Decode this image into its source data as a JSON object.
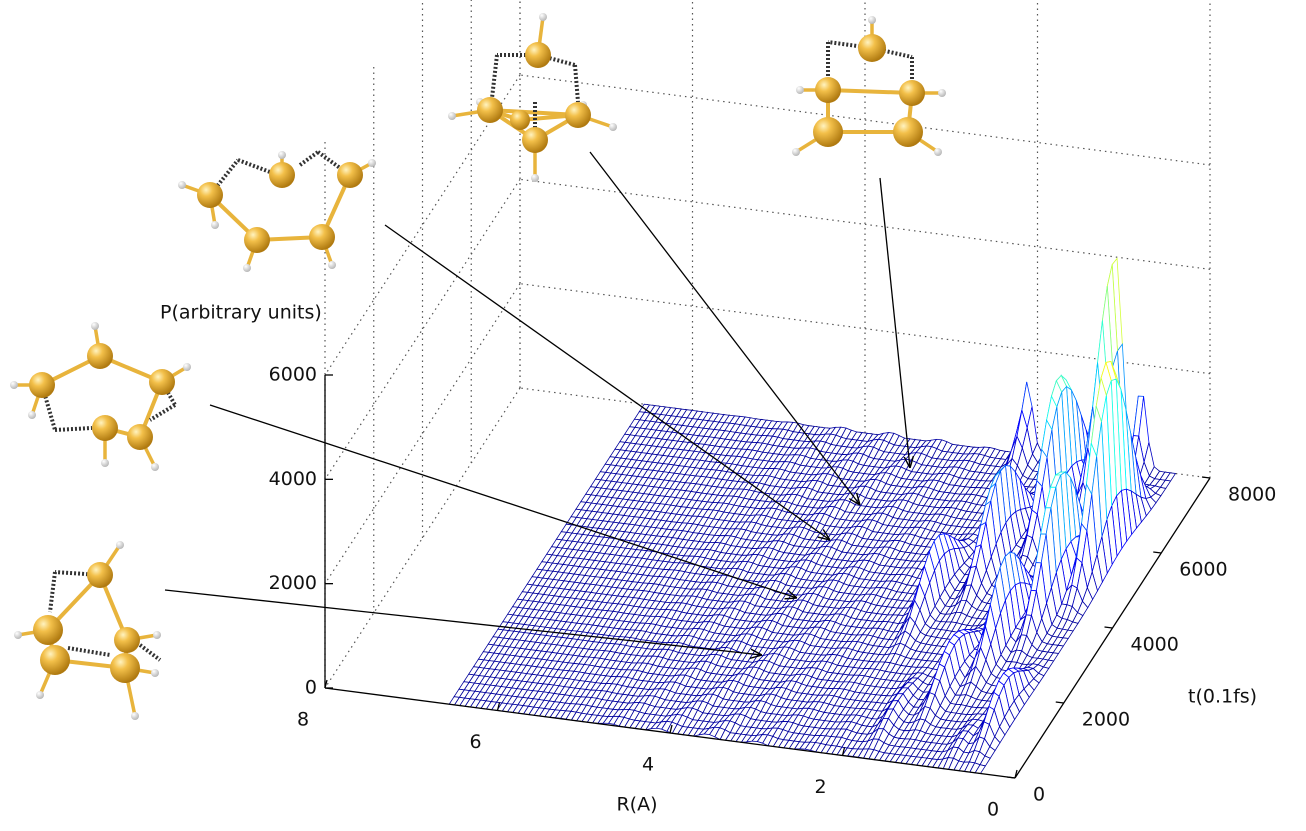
{
  "chart_data": {
    "type": "surface",
    "x_label": "R(A)",
    "y_label": "t(0.1fs)",
    "z_label": "P(arbitrary units)",
    "xlim": [
      0,
      8
    ],
    "xticks": [
      0,
      2,
      4,
      6,
      8
    ],
    "ylim": [
      0,
      8000
    ],
    "yticks": [
      0,
      2000,
      4000,
      6000,
      8000
    ],
    "zlim": [
      0,
      6000
    ],
    "zticks": [
      0,
      2000,
      4000,
      6000
    ]
  }
}
